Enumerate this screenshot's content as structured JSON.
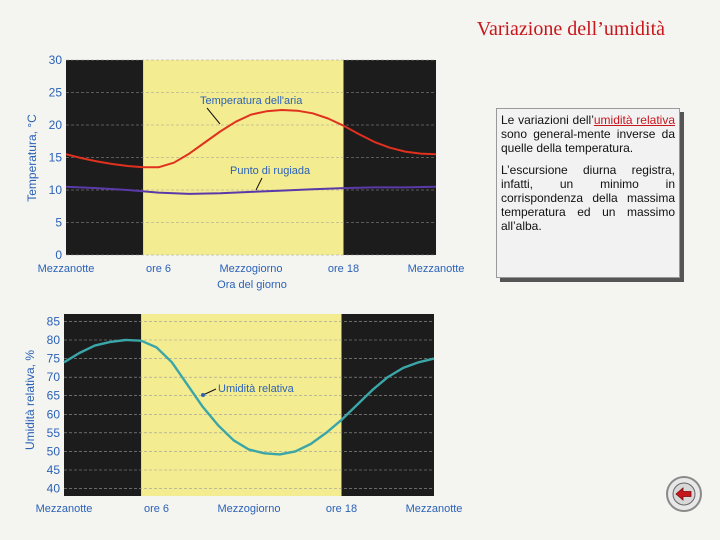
{
  "slide": {
    "title": "Variazione dell’umidità"
  },
  "text": {
    "p1_before": "Le variazioni dell’",
    "p1_highlight": "umidità relativa",
    "p1_after": " sono general-mente inverse da quelle della temperatura.",
    "p2": "L’escursione diurna registra, infatti, un minimo in corrispondenza della massima temperatura ed un massimo all’alba."
  },
  "colors": {
    "night": "#1c1c1c",
    "day": "#f4ec90",
    "grid": "#9a9a9a",
    "temperature": "#e0301e",
    "dewpoint": "#5a3aa8",
    "humidity": "#3aa6a8"
  },
  "back_icon": "back-arrow-icon",
  "chart_data": [
    {
      "type": "line",
      "ylabel": "Temperatura, °C",
      "xlabel": "Ora del giorno",
      "ylim": [
        0,
        30
      ],
      "yticks": [
        0,
        5,
        10,
        15,
        20,
        25,
        30
      ],
      "xlim": [
        0,
        24
      ],
      "xticks": [
        {
          "x": 0,
          "label": "Mezzanotte"
        },
        {
          "x": 6,
          "label": "ore 6"
        },
        {
          "x": 12,
          "label": "Mezzogiorno"
        },
        {
          "x": 18,
          "label": "ore 18"
        },
        {
          "x": 24,
          "label": "Mezzanotte"
        }
      ],
      "daylight": [
        5,
        18
      ],
      "grid": true,
      "series": [
        {
          "name": "Temperatura dell'aria",
          "color": "#e0301e",
          "x": [
            0,
            1,
            2,
            3,
            4,
            5,
            6,
            7,
            8,
            9,
            10,
            11,
            12,
            13,
            14,
            15,
            16,
            17,
            18,
            19,
            20,
            21,
            22,
            23,
            24
          ],
          "y": [
            15.5,
            14.9,
            14.4,
            14.0,
            13.7,
            13.5,
            13.5,
            14.2,
            15.6,
            17.3,
            19.0,
            20.5,
            21.6,
            22.1,
            22.3,
            22.2,
            21.8,
            21.0,
            19.9,
            18.6,
            17.4,
            16.5,
            15.9,
            15.6,
            15.5
          ]
        },
        {
          "name": "Punto di rugiada",
          "color": "#5a3aa8",
          "x": [
            0,
            2,
            4,
            6,
            8,
            10,
            12,
            14,
            16,
            18,
            20,
            22,
            24
          ],
          "y": [
            10.5,
            10.3,
            10.0,
            9.6,
            9.4,
            9.5,
            9.7,
            9.9,
            10.1,
            10.3,
            10.4,
            10.4,
            10.5
          ]
        }
      ]
    },
    {
      "type": "line",
      "ylabel": "Umidità relativa, %",
      "ylim": [
        38,
        87
      ],
      "yticks": [
        40,
        45,
        50,
        55,
        60,
        65,
        70,
        75,
        80,
        85
      ],
      "xlim": [
        0,
        24
      ],
      "xticks": [
        {
          "x": 0,
          "label": "Mezzanotte"
        },
        {
          "x": 6,
          "label": "ore 6"
        },
        {
          "x": 12,
          "label": "Mezzogiorno"
        },
        {
          "x": 18,
          "label": "ore 18"
        },
        {
          "x": 24,
          "label": "Mezzanotte"
        }
      ],
      "daylight": [
        5,
        18
      ],
      "grid": true,
      "series": [
        {
          "name": "Umidità relativa",
          "color": "#3aa6a8",
          "x": [
            0,
            1,
            2,
            3,
            4,
            5,
            6,
            7,
            8,
            9,
            10,
            11,
            12,
            13,
            14,
            15,
            16,
            17,
            18,
            19,
            20,
            21,
            22,
            23,
            24
          ],
          "y": [
            74,
            76.5,
            78.5,
            79.5,
            80,
            79.8,
            78,
            74,
            68,
            62,
            57,
            53,
            50.5,
            49.5,
            49.2,
            50,
            52,
            55,
            58.5,
            62.5,
            66.5,
            70,
            72.5,
            74,
            75
          ]
        }
      ]
    }
  ]
}
